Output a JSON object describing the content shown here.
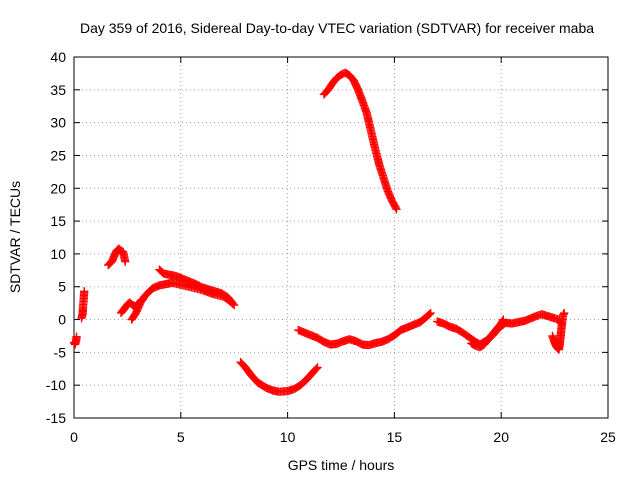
{
  "chart_data": {
    "type": "scatter",
    "title": "Day 359 of 2016, Sidereal Day-to-day VTEC variation (SDTVAR) for receiver maba",
    "xlabel": "GPS time / hours",
    "ylabel": "SDTVAR / TECUs",
    "xlim": [
      0,
      25
    ],
    "ylim": [
      -15,
      40
    ],
    "xticks": [
      0,
      5,
      10,
      15,
      20,
      25
    ],
    "yticks": [
      -15,
      -10,
      -5,
      0,
      5,
      10,
      15,
      20,
      25,
      30,
      35,
      40
    ],
    "grid": true,
    "marker": "+",
    "color": "#ff0000",
    "series": [
      {
        "name": "seg1",
        "points": [
          [
            0.0,
            -3.5
          ],
          [
            0.05,
            -3.8
          ],
          [
            0.1,
            -3.2
          ],
          [
            0.12,
            -2.6
          ]
        ]
      },
      {
        "name": "seg2",
        "points": [
          [
            0.35,
            0.2
          ],
          [
            0.4,
            0.8
          ],
          [
            0.42,
            1.8
          ],
          [
            0.45,
            3.0
          ],
          [
            0.48,
            4.3
          ]
        ]
      },
      {
        "name": "seg3",
        "points": [
          [
            1.6,
            8.3
          ],
          [
            1.7,
            8.6
          ],
          [
            1.8,
            9.0
          ],
          [
            1.9,
            9.8
          ],
          [
            2.0,
            10.5
          ],
          [
            2.1,
            10.8
          ],
          [
            2.2,
            10.5
          ],
          [
            2.3,
            10.3
          ],
          [
            2.4,
            8.8
          ]
        ]
      },
      {
        "name": "seg4",
        "points": [
          [
            2.2,
            1.0
          ],
          [
            2.35,
            1.6
          ],
          [
            2.5,
            2.3
          ],
          [
            2.6,
            2.6
          ],
          [
            2.75,
            2.2
          ],
          [
            2.9,
            2.0
          ],
          [
            3.0,
            2.5
          ]
        ]
      },
      {
        "name": "seg5",
        "points": [
          [
            2.7,
            0.0
          ],
          [
            2.9,
            1.0
          ],
          [
            3.1,
            2.5
          ],
          [
            3.3,
            3.5
          ],
          [
            3.5,
            4.2
          ],
          [
            3.7,
            4.8
          ],
          [
            4.0,
            5.2
          ],
          [
            4.3,
            5.4
          ],
          [
            4.6,
            5.6
          ],
          [
            5.0,
            5.3
          ],
          [
            5.5,
            4.9
          ],
          [
            6.0,
            4.5
          ],
          [
            6.5,
            3.9
          ],
          [
            7.0,
            3.5
          ],
          [
            7.3,
            2.8
          ],
          [
            7.5,
            2.2
          ]
        ]
      },
      {
        "name": "seg6",
        "points": [
          [
            4.0,
            7.6
          ],
          [
            4.2,
            7.0
          ],
          [
            4.5,
            6.8
          ],
          [
            4.8,
            6.6
          ],
          [
            5.1,
            6.2
          ],
          [
            5.4,
            5.8
          ],
          [
            5.7,
            5.4
          ],
          [
            6.0,
            4.9
          ],
          [
            6.3,
            4.6
          ],
          [
            6.6,
            4.3
          ],
          [
            6.9,
            4.0
          ],
          [
            7.2,
            3.4
          ],
          [
            7.4,
            2.6
          ]
        ]
      },
      {
        "name": "seg7",
        "points": [
          [
            7.8,
            -6.5
          ],
          [
            8.0,
            -7.2
          ],
          [
            8.3,
            -8.5
          ],
          [
            8.6,
            -9.6
          ],
          [
            9.0,
            -10.4
          ],
          [
            9.3,
            -10.8
          ],
          [
            9.6,
            -11.0
          ],
          [
            10.0,
            -10.9
          ],
          [
            10.3,
            -10.6
          ],
          [
            10.6,
            -10.0
          ],
          [
            10.9,
            -9.1
          ],
          [
            11.2,
            -8.0
          ],
          [
            11.4,
            -7.3
          ]
        ]
      },
      {
        "name": "seg8",
        "points": [
          [
            11.7,
            34.3
          ],
          [
            11.9,
            35.0
          ],
          [
            12.1,
            36.0
          ],
          [
            12.3,
            36.8
          ],
          [
            12.5,
            37.3
          ],
          [
            12.7,
            37.6
          ],
          [
            12.9,
            37.2
          ],
          [
            13.1,
            36.4
          ],
          [
            13.3,
            35.0
          ],
          [
            13.5,
            33.3
          ],
          [
            13.7,
            31.5
          ],
          [
            13.9,
            28.8
          ],
          [
            14.1,
            26.0
          ],
          [
            14.3,
            23.5
          ],
          [
            14.5,
            21.5
          ],
          [
            14.7,
            19.5
          ],
          [
            14.9,
            18.0
          ],
          [
            15.1,
            16.8
          ]
        ]
      },
      {
        "name": "seg9",
        "points": [
          [
            10.5,
            -1.6
          ],
          [
            10.8,
            -2.0
          ],
          [
            11.1,
            -2.4
          ],
          [
            11.4,
            -2.8
          ],
          [
            11.7,
            -3.4
          ],
          [
            12.0,
            -3.8
          ],
          [
            12.3,
            -3.7
          ],
          [
            12.6,
            -3.3
          ],
          [
            12.9,
            -3.0
          ],
          [
            13.2,
            -3.3
          ],
          [
            13.5,
            -3.8
          ],
          [
            13.8,
            -3.9
          ],
          [
            14.1,
            -3.6
          ],
          [
            14.4,
            -3.4
          ],
          [
            14.7,
            -3.0
          ],
          [
            15.0,
            -2.4
          ],
          [
            15.3,
            -1.6
          ],
          [
            15.6,
            -1.2
          ],
          [
            15.9,
            -0.8
          ],
          [
            16.2,
            -0.4
          ],
          [
            16.5,
            0.4
          ],
          [
            16.7,
            1.0
          ]
        ]
      },
      {
        "name": "seg10",
        "points": [
          [
            17.0,
            -0.3
          ],
          [
            17.3,
            -0.6
          ],
          [
            17.6,
            -1.1
          ],
          [
            17.9,
            -1.4
          ],
          [
            18.2,
            -2.0
          ],
          [
            18.5,
            -2.7
          ],
          [
            18.8,
            -3.4
          ],
          [
            19.0,
            -3.8
          ],
          [
            19.3,
            -3.2
          ],
          [
            19.6,
            -2.4
          ],
          [
            19.8,
            -1.6
          ],
          [
            20.0,
            -1.0
          ],
          [
            20.2,
            -0.5
          ],
          [
            20.5,
            -0.6
          ],
          [
            20.8,
            -0.4
          ],
          [
            21.1,
            -0.2
          ],
          [
            21.4,
            0.2
          ],
          [
            21.7,
            0.6
          ],
          [
            21.9,
            0.8
          ],
          [
            22.2,
            0.5
          ],
          [
            22.5,
            0.2
          ],
          [
            22.7,
            0.0
          ],
          [
            22.8,
            -0.6
          ]
        ]
      },
      {
        "name": "seg11",
        "points": [
          [
            18.6,
            -3.6
          ],
          [
            18.8,
            -4.0
          ],
          [
            19.0,
            -4.2
          ],
          [
            19.2,
            -3.8
          ],
          [
            19.4,
            -3.0
          ],
          [
            19.6,
            -2.2
          ],
          [
            19.8,
            -1.4
          ],
          [
            20.0,
            -0.6
          ],
          [
            20.1,
            0.0
          ]
        ]
      },
      {
        "name": "seg12",
        "points": [
          [
            22.4,
            -2.5
          ],
          [
            22.5,
            -3.5
          ],
          [
            22.6,
            -4.2
          ],
          [
            22.7,
            -4.6
          ],
          [
            22.75,
            -3.6
          ],
          [
            22.8,
            -2.0
          ],
          [
            22.85,
            -0.5
          ],
          [
            22.9,
            0.7
          ],
          [
            22.95,
            1.0
          ]
        ]
      }
    ]
  }
}
